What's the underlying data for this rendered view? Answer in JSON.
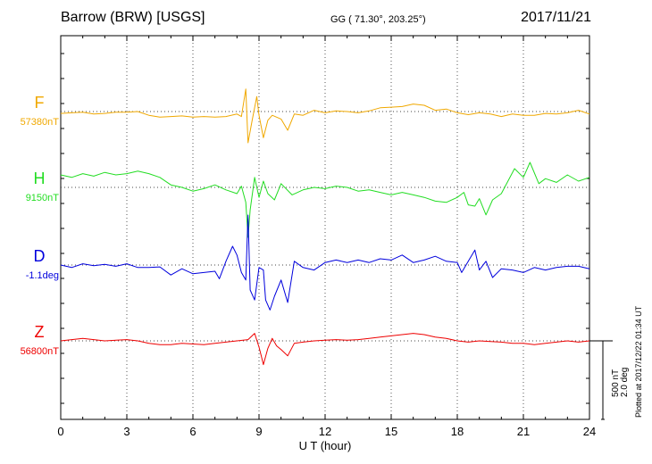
{
  "header": {
    "station": "Barrow (BRW)  [USGS]",
    "coords": "GG ( 71.30°, 203.25°)",
    "date": "2017/11/21"
  },
  "plotted": "Plotted at 2017/12/22 01:34 UT",
  "scale": {
    "nt": "500 nT",
    "deg": "2.0 deg"
  },
  "chart_data": {
    "type": "line",
    "xlabel": "U T (hour)",
    "xlim": [
      0,
      24
    ],
    "xticks": [
      0,
      3,
      6,
      9,
      12,
      15,
      18,
      21,
      24
    ],
    "grid": true,
    "scale_bar_nT": 500,
    "scale_bar_deg": 2.0,
    "series": [
      {
        "name": "F",
        "baseline_label": "57380nT",
        "color": "#f0a800",
        "points": [
          [
            0,
            -15
          ],
          [
            0.5,
            -10
          ],
          [
            1,
            -5
          ],
          [
            1.5,
            -20
          ],
          [
            2,
            -15
          ],
          [
            2.5,
            -5
          ],
          [
            3,
            -5
          ],
          [
            3.5,
            0
          ],
          [
            4,
            -30
          ],
          [
            4.5,
            -45
          ],
          [
            5,
            -40
          ],
          [
            5.5,
            -35
          ],
          [
            6,
            -45
          ],
          [
            6.5,
            -40
          ],
          [
            7,
            -45
          ],
          [
            7.5,
            -40
          ],
          [
            8,
            -20
          ],
          [
            8.2,
            -40
          ],
          [
            8.4,
            180
          ],
          [
            8.5,
            -250
          ],
          [
            8.7,
            -60
          ],
          [
            8.9,
            120
          ],
          [
            9,
            -30
          ],
          [
            9.2,
            -210
          ],
          [
            9.4,
            -70
          ],
          [
            9.6,
            -30
          ],
          [
            10,
            -60
          ],
          [
            10.3,
            -150
          ],
          [
            10.6,
            -20
          ],
          [
            11,
            -30
          ],
          [
            11.5,
            10
          ],
          [
            12,
            -10
          ],
          [
            12.5,
            5
          ],
          [
            13,
            0
          ],
          [
            13.5,
            -10
          ],
          [
            14,
            5
          ],
          [
            14.5,
            30
          ],
          [
            15,
            35
          ],
          [
            15.5,
            40
          ],
          [
            16,
            60
          ],
          [
            16.5,
            50
          ],
          [
            17,
            10
          ],
          [
            17.5,
            20
          ],
          [
            18,
            -10
          ],
          [
            18.5,
            -25
          ],
          [
            19,
            -10
          ],
          [
            19.5,
            -20
          ],
          [
            20,
            -40
          ],
          [
            20.5,
            -20
          ],
          [
            21,
            -30
          ],
          [
            21.5,
            -30
          ],
          [
            22,
            -15
          ],
          [
            22.5,
            -20
          ],
          [
            23,
            -10
          ],
          [
            23.5,
            10
          ],
          [
            24,
            -20
          ]
        ]
      },
      {
        "name": "H",
        "baseline_label": "9150nT",
        "color": "#22dd22",
        "points": [
          [
            0,
            100
          ],
          [
            0.5,
            80
          ],
          [
            1,
            110
          ],
          [
            1.5,
            90
          ],
          [
            2,
            120
          ],
          [
            2.5,
            100
          ],
          [
            3,
            110
          ],
          [
            3.5,
            130
          ],
          [
            4,
            110
          ],
          [
            4.5,
            80
          ],
          [
            5,
            20
          ],
          [
            5.5,
            0
          ],
          [
            6,
            -30
          ],
          [
            6.5,
            -10
          ],
          [
            7,
            20
          ],
          [
            7.5,
            -20
          ],
          [
            8,
            -50
          ],
          [
            8.2,
            10
          ],
          [
            8.4,
            -120
          ],
          [
            8.5,
            -400
          ],
          [
            8.6,
            -180
          ],
          [
            8.8,
            80
          ],
          [
            9,
            -80
          ],
          [
            9.2,
            50
          ],
          [
            9.4,
            -50
          ],
          [
            9.7,
            -100
          ],
          [
            10,
            30
          ],
          [
            10.5,
            -60
          ],
          [
            11,
            -20
          ],
          [
            11.5,
            0
          ],
          [
            12,
            -10
          ],
          [
            12.5,
            10
          ],
          [
            13,
            0
          ],
          [
            13.5,
            -30
          ],
          [
            14,
            -20
          ],
          [
            14.5,
            -40
          ],
          [
            15,
            -60
          ],
          [
            15.5,
            -40
          ],
          [
            16,
            -60
          ],
          [
            16.5,
            -80
          ],
          [
            17,
            -110
          ],
          [
            17.5,
            -120
          ],
          [
            18,
            -80
          ],
          [
            18.3,
            -40
          ],
          [
            18.5,
            -140
          ],
          [
            18.8,
            -150
          ],
          [
            19,
            -90
          ],
          [
            19.3,
            -220
          ],
          [
            19.6,
            -100
          ],
          [
            20,
            -50
          ],
          [
            20.3,
            50
          ],
          [
            20.6,
            150
          ],
          [
            21,
            80
          ],
          [
            21.3,
            200
          ],
          [
            21.7,
            30
          ],
          [
            22,
            70
          ],
          [
            22.5,
            40
          ],
          [
            23,
            100
          ],
          [
            23.5,
            50
          ],
          [
            24,
            80
          ]
        ]
      },
      {
        "name": "D",
        "baseline_label": "-1.1deg",
        "color": "#0000dd",
        "points": [
          [
            0,
            0
          ],
          [
            0.5,
            -20
          ],
          [
            1,
            10
          ],
          [
            1.5,
            -5
          ],
          [
            2,
            5
          ],
          [
            2.5,
            -10
          ],
          [
            3,
            10
          ],
          [
            3.5,
            -20
          ],
          [
            4,
            -20
          ],
          [
            4.5,
            -15
          ],
          [
            5,
            -80
          ],
          [
            5.5,
            -30
          ],
          [
            6,
            -70
          ],
          [
            6.5,
            -60
          ],
          [
            7,
            -50
          ],
          [
            7.2,
            -110
          ],
          [
            7.5,
            30
          ],
          [
            7.8,
            150
          ],
          [
            8,
            80
          ],
          [
            8.2,
            -60
          ],
          [
            8.4,
            -120
          ],
          [
            8.5,
            400
          ],
          [
            8.6,
            -200
          ],
          [
            8.8,
            -280
          ],
          [
            9,
            -20
          ],
          [
            9.2,
            -40
          ],
          [
            9.3,
            -280
          ],
          [
            9.5,
            -360
          ],
          [
            9.7,
            -250
          ],
          [
            10,
            -120
          ],
          [
            10.3,
            -300
          ],
          [
            10.6,
            30
          ],
          [
            11,
            -20
          ],
          [
            11.5,
            -40
          ],
          [
            12,
            20
          ],
          [
            12.5,
            40
          ],
          [
            13,
            20
          ],
          [
            13.5,
            40
          ],
          [
            14,
            20
          ],
          [
            14.5,
            50
          ],
          [
            15,
            40
          ],
          [
            15.5,
            80
          ],
          [
            16,
            20
          ],
          [
            16.5,
            40
          ],
          [
            17,
            70
          ],
          [
            17.5,
            30
          ],
          [
            18,
            20
          ],
          [
            18.2,
            -60
          ],
          [
            18.5,
            30
          ],
          [
            18.8,
            120
          ],
          [
            19,
            -40
          ],
          [
            19.3,
            30
          ],
          [
            19.6,
            -100
          ],
          [
            20,
            -30
          ],
          [
            20.5,
            -40
          ],
          [
            21,
            -60
          ],
          [
            21.5,
            -20
          ],
          [
            22,
            -40
          ],
          [
            22.5,
            -20
          ],
          [
            23,
            -10
          ],
          [
            23.5,
            -10
          ],
          [
            24,
            -30
          ]
        ]
      },
      {
        "name": "Z",
        "baseline_label": "56800nT",
        "color": "#ee0000",
        "points": [
          [
            0,
            0
          ],
          [
            0.5,
            10
          ],
          [
            1,
            20
          ],
          [
            1.5,
            10
          ],
          [
            2,
            0
          ],
          [
            2.5,
            5
          ],
          [
            3,
            10
          ],
          [
            3.5,
            0
          ],
          [
            4,
            -20
          ],
          [
            4.5,
            -30
          ],
          [
            5,
            -30
          ],
          [
            5.5,
            -20
          ],
          [
            6,
            -25
          ],
          [
            6.5,
            -30
          ],
          [
            7,
            -20
          ],
          [
            7.5,
            -10
          ],
          [
            8,
            0
          ],
          [
            8.5,
            10
          ],
          [
            8.8,
            60
          ],
          [
            9,
            -50
          ],
          [
            9.1,
            -120
          ],
          [
            9.2,
            -190
          ],
          [
            9.4,
            -60
          ],
          [
            9.6,
            20
          ],
          [
            9.8,
            -40
          ],
          [
            10,
            -70
          ],
          [
            10.3,
            -120
          ],
          [
            10.6,
            -20
          ],
          [
            11,
            -10
          ],
          [
            11.5,
            0
          ],
          [
            12,
            5
          ],
          [
            12.5,
            10
          ],
          [
            13,
            5
          ],
          [
            13.5,
            10
          ],
          [
            14,
            20
          ],
          [
            14.5,
            30
          ],
          [
            15,
            40
          ],
          [
            15.5,
            50
          ],
          [
            16,
            60
          ],
          [
            16.5,
            50
          ],
          [
            17,
            30
          ],
          [
            17.5,
            20
          ],
          [
            18,
            0
          ],
          [
            18.5,
            -10
          ],
          [
            19,
            0
          ],
          [
            19.5,
            -5
          ],
          [
            20,
            -10
          ],
          [
            20.5,
            -20
          ],
          [
            21,
            -20
          ],
          [
            21.5,
            -30
          ],
          [
            22,
            -20
          ],
          [
            22.5,
            -10
          ],
          [
            23,
            0
          ],
          [
            23.5,
            -10
          ],
          [
            24,
            0
          ]
        ]
      }
    ]
  }
}
